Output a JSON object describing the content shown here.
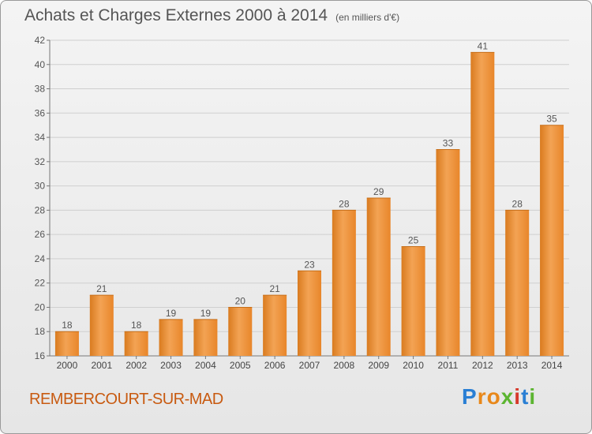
{
  "title": "Achats et Charges Externes 2000 à 2014",
  "subtitle": "(en milliers d'€)",
  "town": "REMBERCOURT-SUR-MAD",
  "logo": {
    "letters": [
      "P",
      "r",
      "o",
      "x",
      "i",
      "t",
      "i"
    ],
    "colors": [
      "#2a7fd4",
      "#e8881b",
      "#e8881b",
      "#5cb531",
      "#d6392b",
      "#2a7fd4",
      "#5cb531"
    ]
  },
  "colors": {
    "bar": "#e98a2d",
    "town": "#c85a10",
    "text": "#555555"
  },
  "chart_data": {
    "type": "bar",
    "categories": [
      "2000",
      "2001",
      "2002",
      "2003",
      "2004",
      "2005",
      "2006",
      "2007",
      "2008",
      "2009",
      "2010",
      "2011",
      "2012",
      "2013",
      "2014"
    ],
    "values": [
      18,
      21,
      18,
      19,
      19,
      20,
      21,
      23,
      28,
      29,
      25,
      33,
      41,
      28,
      35
    ],
    "ylim": [
      16,
      42
    ],
    "yticks": [
      16,
      18,
      20,
      22,
      24,
      26,
      28,
      30,
      32,
      34,
      36,
      38,
      40,
      42
    ],
    "grid": true,
    "data_labels": true
  }
}
